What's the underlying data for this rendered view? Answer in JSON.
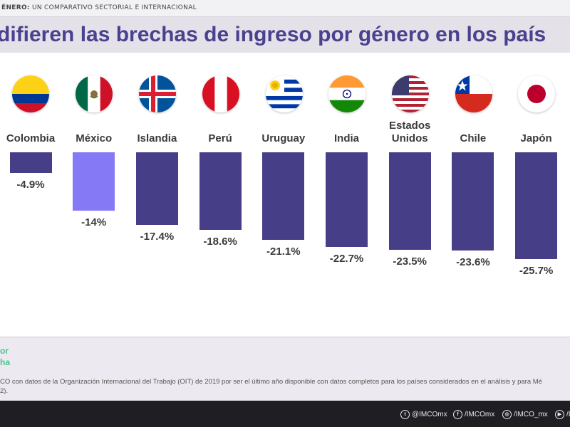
{
  "header": {
    "bold": "ÉNERO:",
    "rest": " UN COMPARATIVO SECTORIAL E INTERNACIONAL"
  },
  "title": "difieren las brechas de ingreso por género en los país",
  "chart_data": {
    "type": "bar",
    "categories": [
      "Colombia",
      "México",
      "Islandia",
      "Perú",
      "Uruguay",
      "India",
      "Estados Unidos",
      "Chile",
      "Japón"
    ],
    "values": [
      -4.9,
      -14,
      -17.4,
      -18.6,
      -21.1,
      -22.7,
      -23.5,
      -23.6,
      -25.7
    ],
    "value_labels": [
      "-4.9%",
      "-14%",
      "-17.4%",
      "-18.6%",
      "-21.1%",
      "-22.7%",
      "-23.5%",
      "-23.6%",
      "-25.7%"
    ],
    "highlight": "México",
    "colors": {
      "default": "#463e87",
      "highlight": "#8579f5"
    },
    "title": "",
    "xlabel": "",
    "ylabel": ""
  },
  "flags": [
    "colombia-flag-icon",
    "mexico-flag-icon",
    "iceland-flag-icon",
    "peru-flag-icon",
    "uruguay-flag-icon",
    "india-flag-icon",
    "usa-flag-icon",
    "chile-flag-icon",
    "japan-flag-icon"
  ],
  "legend": {
    "line1": "or",
    "line2": "ha"
  },
  "source": {
    "line1": "CO  con datos de la Organización Internacional del Trabajo (OIT) de 2019 por ser el último año disponible con datos completos para los países considerados en el análisis y para Mé",
    "line2": "2)."
  },
  "footer": {
    "twitter": "@IMCOmx",
    "facebook": "/IMCOmx",
    "instagram": "/IMCO_mx",
    "youtube": "/I"
  }
}
